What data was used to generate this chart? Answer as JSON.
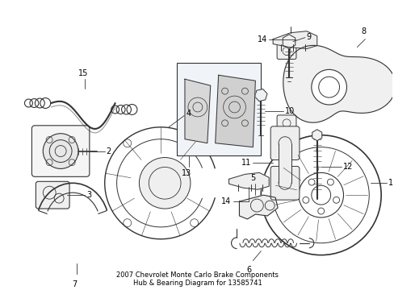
{
  "title": "2007 Chevrolet Monte Carlo Brake Components\nHub & Bearing Diagram for 13585741",
  "bg_color": "#ffffff",
  "line_color": "#333333",
  "label_color": "#000000",
  "fig_width": 4.89,
  "fig_height": 3.6,
  "dpi": 100
}
